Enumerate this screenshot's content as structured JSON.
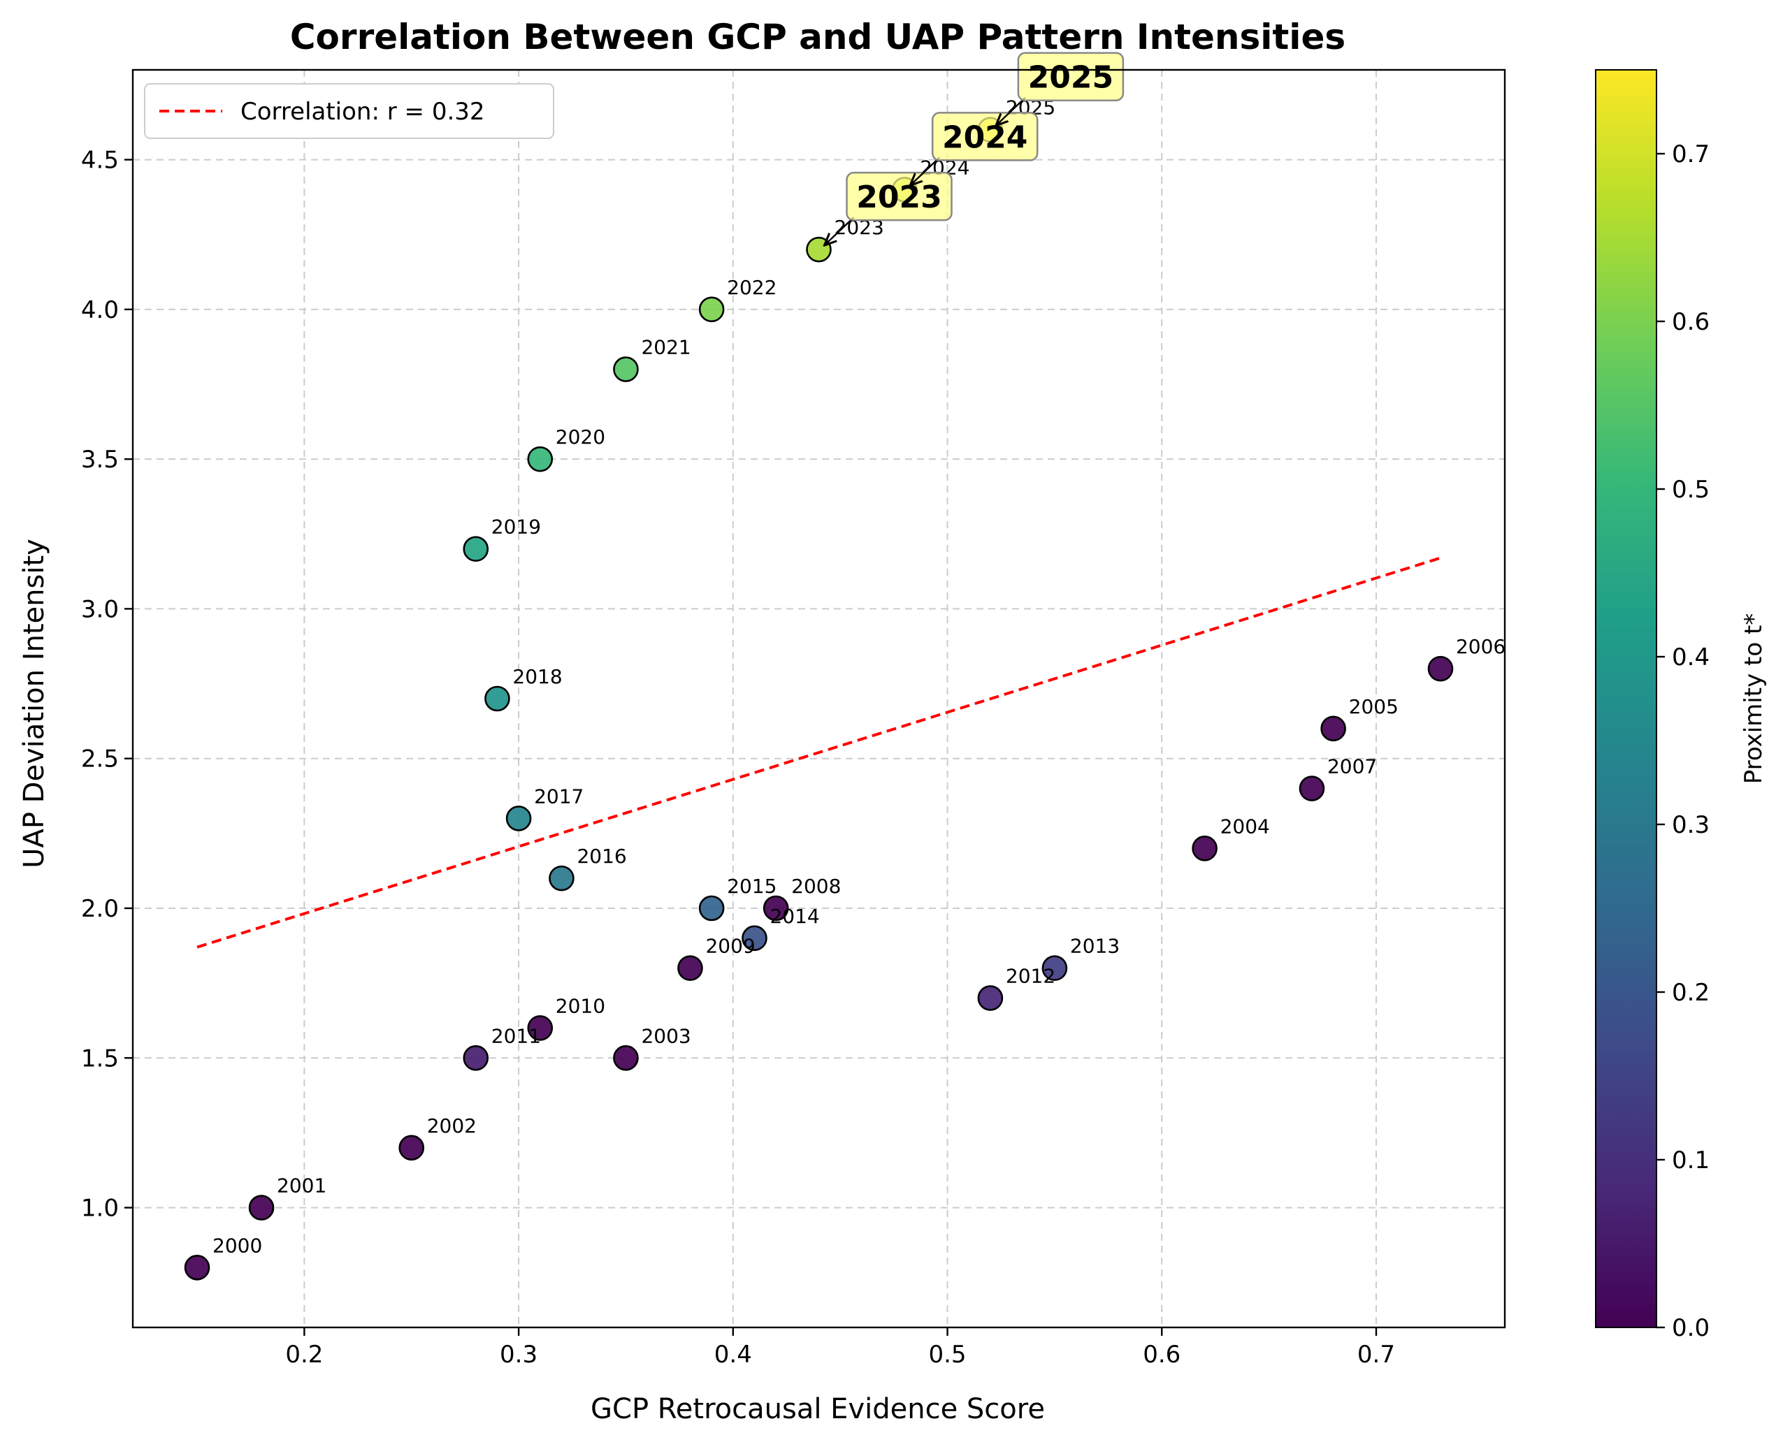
{
  "chart_data": {
    "type": "scatter",
    "title": "Correlation Between GCP and UAP Pattern Intensities",
    "xlabel": "GCP Retrocausal Evidence Score",
    "ylabel": "UAP Deviation Intensity",
    "xlim": [
      0.12,
      0.76
    ],
    "ylim": [
      0.6,
      4.8
    ],
    "x_ticks": [
      "0.2",
      "0.3",
      "0.4",
      "0.5",
      "0.6",
      "0.7"
    ],
    "y_ticks": [
      "1.0",
      "1.5",
      "2.0",
      "2.5",
      "3.0",
      "3.5",
      "4.0",
      "4.5"
    ],
    "grid": true,
    "legend_position": "top-left",
    "trend_line": {
      "label": "Correlation: r = 0.32",
      "color": "#ff0000",
      "style": "dashed",
      "x": [
        0.15,
        0.73
      ],
      "y": [
        1.87,
        3.17
      ]
    },
    "colorbar": {
      "label": "Proximity to t*",
      "colormap": "viridis",
      "range": [
        0,
        0.75
      ],
      "ticks": [
        "0.0",
        "0.1",
        "0.2",
        "0.3",
        "0.4",
        "0.5",
        "0.6",
        "0.7"
      ]
    },
    "points": [
      {
        "label": "2000",
        "x": 0.15,
        "y": 0.8,
        "c": 0.0
      },
      {
        "label": "2001",
        "x": 0.18,
        "y": 1.0,
        "c": 0.0
      },
      {
        "label": "2002",
        "x": 0.25,
        "y": 1.2,
        "c": 0.0
      },
      {
        "label": "2003",
        "x": 0.35,
        "y": 1.5,
        "c": 0.0
      },
      {
        "label": "2004",
        "x": 0.62,
        "y": 2.2,
        "c": 0.0
      },
      {
        "label": "2005",
        "x": 0.68,
        "y": 2.6,
        "c": 0.0
      },
      {
        "label": "2006",
        "x": 0.73,
        "y": 2.8,
        "c": 0.0
      },
      {
        "label": "2007",
        "x": 0.67,
        "y": 2.4,
        "c": 0.0
      },
      {
        "label": "2008",
        "x": 0.42,
        "y": 2.0,
        "c": 0.0
      },
      {
        "label": "2009",
        "x": 0.38,
        "y": 1.8,
        "c": 0.0
      },
      {
        "label": "2010",
        "x": 0.31,
        "y": 1.6,
        "c": 0.0
      },
      {
        "label": "2011",
        "x": 0.28,
        "y": 1.5,
        "c": 0.06
      },
      {
        "label": "2012",
        "x": 0.52,
        "y": 1.7,
        "c": 0.08
      },
      {
        "label": "2013",
        "x": 0.55,
        "y": 1.8,
        "c": 0.14
      },
      {
        "label": "2014",
        "x": 0.41,
        "y": 1.9,
        "c": 0.19
      },
      {
        "label": "2015",
        "x": 0.39,
        "y": 2.0,
        "c": 0.24
      },
      {
        "label": "2016",
        "x": 0.32,
        "y": 2.1,
        "c": 0.3
      },
      {
        "label": "2017",
        "x": 0.3,
        "y": 2.3,
        "c": 0.34
      },
      {
        "label": "2018",
        "x": 0.29,
        "y": 2.7,
        "c": 0.39
      },
      {
        "label": "2019",
        "x": 0.28,
        "y": 3.2,
        "c": 0.44
      },
      {
        "label": "2020",
        "x": 0.31,
        "y": 3.5,
        "c": 0.5
      },
      {
        "label": "2021",
        "x": 0.35,
        "y": 3.8,
        "c": 0.55
      },
      {
        "label": "2022",
        "x": 0.39,
        "y": 4.0,
        "c": 0.6
      },
      {
        "label": "2023",
        "x": 0.44,
        "y": 4.2,
        "c": 0.65
      },
      {
        "label": "2024",
        "x": 0.48,
        "y": 4.4,
        "c": 0.7
      },
      {
        "label": "2025",
        "x": 0.52,
        "y": 4.6,
        "c": 0.74
      }
    ],
    "callouts": [
      {
        "label": "2023",
        "for": "2023"
      },
      {
        "label": "2024",
        "for": "2024"
      },
      {
        "label": "2025",
        "for": "2025"
      }
    ]
  }
}
